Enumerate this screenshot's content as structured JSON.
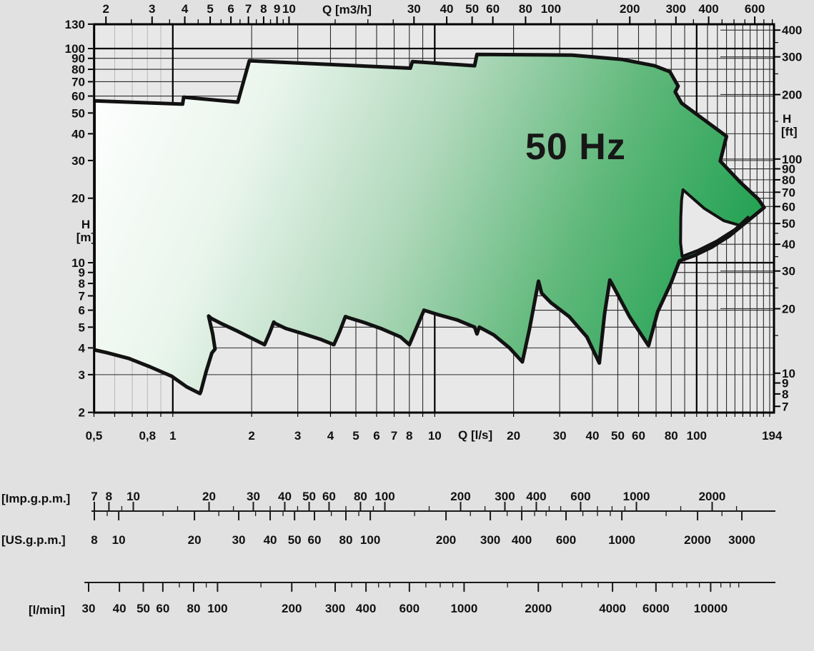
{
  "chart_data": {
    "type": "area",
    "title": "50 Hz",
    "description": "Pump coverage envelope, head H versus flow Q, log-log scales",
    "frequency_label": "50 Hz",
    "axes": {
      "top": {
        "title": "Q [m3/h]",
        "labeled": [
          2,
          3,
          4,
          5,
          6,
          7,
          8,
          9,
          10,
          30,
          40,
          50,
          60,
          80,
          100,
          200,
          300,
          400,
          600
        ],
        "minor": [
          2.5,
          3.5,
          4.5,
          5.5,
          6.5,
          7.5,
          8.5,
          9.5,
          15,
          20,
          25,
          150,
          250,
          350,
          450,
          500,
          550,
          650,
          700
        ]
      },
      "bottom": {
        "title": "Q [l/s]",
        "labels": [
          {
            "v": 0.5,
            "t": "0,5"
          },
          {
            "v": 0.8,
            "t": "0,8"
          },
          {
            "v": 1,
            "t": "1"
          },
          {
            "v": 2,
            "t": "2"
          },
          {
            "v": 3,
            "t": "3"
          },
          {
            "v": 4,
            "t": "4"
          },
          {
            "v": 5,
            "t": "5"
          },
          {
            "v": 6,
            "t": "6"
          },
          {
            "v": 7,
            "t": "7"
          },
          {
            "v": 8,
            "t": "8"
          },
          {
            "v": 10,
            "t": "10"
          },
          {
            "v": 20,
            "t": "20"
          },
          {
            "v": 30,
            "t": "30"
          },
          {
            "v": 40,
            "t": "40"
          },
          {
            "v": 50,
            "t": "50"
          },
          {
            "v": 60,
            "t": "60"
          },
          {
            "v": 80,
            "t": "80"
          },
          {
            "v": 100,
            "t": "100"
          },
          {
            "v": 194,
            "t": "194"
          }
        ]
      },
      "left": {
        "title_1": "H",
        "title_2": "[m]",
        "labeled": [
          130,
          100,
          90,
          80,
          70,
          60,
          50,
          40,
          30,
          20,
          10,
          9,
          8,
          7,
          6,
          5,
          4,
          3,
          2
        ]
      },
      "right": {
        "title_1": "H",
        "title_2": "[ft]",
        "labeled": [
          400,
          300,
          200,
          100,
          90,
          80,
          70,
          60,
          50,
          40,
          30,
          20,
          10,
          9,
          8,
          7
        ],
        "minor": [
          15,
          25,
          35,
          45,
          150,
          250,
          350
        ]
      }
    },
    "grid": {
      "v_light": [
        0.6,
        0.7,
        0.8,
        0.9
      ],
      "v_norm": [
        2,
        3,
        4,
        5,
        6,
        7,
        8,
        9,
        20,
        30,
        40,
        50,
        60,
        70,
        80,
        90,
        110,
        120,
        130,
        140,
        150,
        160,
        170,
        180,
        190
      ],
      "v_major": [
        1,
        10,
        100
      ],
      "h_norm": [
        3,
        4,
        5,
        6,
        7,
        8,
        9,
        20,
        30,
        40,
        50,
        60,
        70,
        80,
        90
      ],
      "h_major": [
        10,
        100
      ],
      "ft_stubs": [
        20,
        30,
        40,
        50,
        60,
        70,
        80,
        90,
        100,
        200,
        300,
        400
      ]
    },
    "envelope_q_h": [
      [
        0.5,
        57
      ],
      [
        1.09,
        55
      ],
      [
        1.1,
        59.3
      ],
      [
        1.77,
        56.2
      ],
      [
        1.96,
        87.7
      ],
      [
        8.07,
        81
      ],
      [
        8.22,
        86.9
      ],
      [
        14.2,
        83.1
      ],
      [
        14.5,
        93.9
      ],
      [
        33.5,
        93.2
      ],
      [
        52,
        88.9
      ],
      [
        69,
        83.1
      ],
      [
        79,
        78
      ],
      [
        85,
        66.8
      ],
      [
        82.8,
        62.7
      ],
      [
        87.6,
        55.6
      ],
      [
        130,
        38.9
      ],
      [
        123,
        29.8
      ],
      [
        147,
        23.7
      ],
      [
        172,
        19.8
      ],
      [
        181,
        18.1
      ],
      [
        156,
        15.6
      ],
      [
        133,
        13.3
      ],
      [
        114,
        11.8
      ],
      [
        98,
        10.8
      ],
      [
        86,
        10.2
      ],
      [
        80,
        8.1
      ],
      [
        71,
        5.9
      ],
      [
        65.5,
        4.1
      ],
      [
        55.4,
        5.6
      ],
      [
        47.4,
        8.0
      ],
      [
        46.6,
        8.3
      ],
      [
        44.5,
        5.75
      ],
      [
        42.5,
        3.4
      ],
      [
        38.1,
        4.5
      ],
      [
        32.6,
        5.6
      ],
      [
        27.8,
        6.5
      ],
      [
        25.6,
        7.2
      ],
      [
        24.9,
        8.2
      ],
      [
        23,
        4.9
      ],
      [
        21.6,
        3.44
      ],
      [
        19.3,
        4.0
      ],
      [
        16.8,
        4.6
      ],
      [
        14.8,
        5.0
      ],
      [
        14.5,
        4.65
      ],
      [
        14.2,
        5.0
      ],
      [
        12.2,
        5.4
      ],
      [
        10.4,
        5.7
      ],
      [
        9.1,
        6.0
      ],
      [
        8.5,
        4.93
      ],
      [
        8.0,
        4.14
      ],
      [
        7.4,
        4.5
      ],
      [
        6.3,
        4.9
      ],
      [
        5.4,
        5.25
      ],
      [
        4.67,
        5.54
      ],
      [
        4.56,
        5.6
      ],
      [
        4.33,
        4.75
      ],
      [
        4.12,
        4.14
      ],
      [
        3.7,
        4.37
      ],
      [
        3.16,
        4.65
      ],
      [
        2.7,
        4.93
      ],
      [
        2.46,
        5.2
      ],
      [
        2.43,
        5.28
      ],
      [
        2.34,
        4.68
      ],
      [
        2.24,
        4.14
      ],
      [
        2.03,
        4.4
      ],
      [
        1.74,
        4.83
      ],
      [
        1.53,
        5.2
      ],
      [
        1.4,
        5.5
      ],
      [
        1.37,
        5.63
      ],
      [
        1.42,
        4.65
      ],
      [
        1.45,
        3.95
      ],
      [
        1.41,
        3.79
      ],
      [
        1.34,
        3.1
      ],
      [
        1.28,
        2.51
      ],
      [
        1.27,
        2.45
      ],
      [
        1.13,
        2.63
      ],
      [
        0.99,
        2.95
      ],
      [
        0.82,
        3.26
      ],
      [
        0.68,
        3.57
      ],
      [
        0.56,
        3.8
      ],
      [
        0.5,
        3.92
      ]
    ],
    "notch_q_h": [
      [
        88.7,
        21.9
      ],
      [
        107,
        17.9
      ],
      [
        127,
        15.7
      ],
      [
        147,
        14.9
      ],
      [
        157,
        16.3
      ],
      [
        140,
        14.3
      ],
      [
        119,
        12.6
      ],
      [
        101,
        11.4
      ],
      [
        88,
        10.7
      ],
      [
        86.8,
        12.4
      ],
      [
        87,
        16.2
      ],
      [
        87.6,
        19.6
      ]
    ],
    "rulers": {
      "imp": {
        "label": "[Imp.g.p.m.]",
        "labeled": [
          7,
          8,
          10,
          20,
          30,
          40,
          50,
          60,
          80,
          100,
          200,
          300,
          400,
          600,
          1000,
          2000
        ],
        "ticks": [
          7,
          8,
          9,
          10,
          15,
          20,
          25,
          30,
          35,
          40,
          45,
          50,
          60,
          70,
          80,
          90,
          100,
          150,
          200,
          250,
          300,
          350,
          400,
          450,
          500,
          600,
          700,
          800,
          900,
          1000,
          1500,
          2000,
          2500
        ]
      },
      "us": {
        "label": "[US.g.p.m.]",
        "labeled": [
          8,
          10,
          20,
          30,
          40,
          50,
          60,
          80,
          100,
          200,
          300,
          400,
          600,
          1000,
          2000,
          3000
        ],
        "ticks": [
          8,
          9,
          10,
          15,
          20,
          25,
          30,
          35,
          40,
          45,
          50,
          60,
          70,
          80,
          90,
          100,
          150,
          200,
          250,
          300,
          350,
          400,
          450,
          500,
          600,
          700,
          800,
          900,
          1000,
          1500,
          2000,
          2500,
          3000
        ]
      },
      "lmin": {
        "label": "[l/min]",
        "labeled": [
          30,
          40,
          50,
          60,
          80,
          100,
          200,
          300,
          400,
          600,
          1000,
          2000,
          4000,
          6000,
          10000
        ],
        "ticks": [
          30,
          40,
          50,
          60,
          70,
          80,
          90,
          100,
          150,
          200,
          250,
          300,
          350,
          400,
          450,
          500,
          600,
          700,
          800,
          900,
          1000,
          1500,
          2000,
          2500,
          3000,
          3500,
          4000,
          5000,
          6000,
          7000,
          8000,
          9000,
          10000,
          11000,
          12000,
          13000
        ]
      }
    },
    "colors": {
      "page_bg": "#e1e1e1",
      "plot_bg": "#e8e8e8",
      "outline": "#121212",
      "grid_light": "#b8b8b8",
      "grid_norm": "#2a2a2a",
      "grid_major": "#000000",
      "shade_white": "#ffffff",
      "shade_pale": "#e9f5ec",
      "shade_mid": "#b0d8bb",
      "shade_green": "#5fb87a",
      "shade_deep": "#1fa050",
      "text": "#111111"
    },
    "xlim_ls": [
      0.5,
      197
    ],
    "ylim_m": [
      2,
      130
    ]
  }
}
